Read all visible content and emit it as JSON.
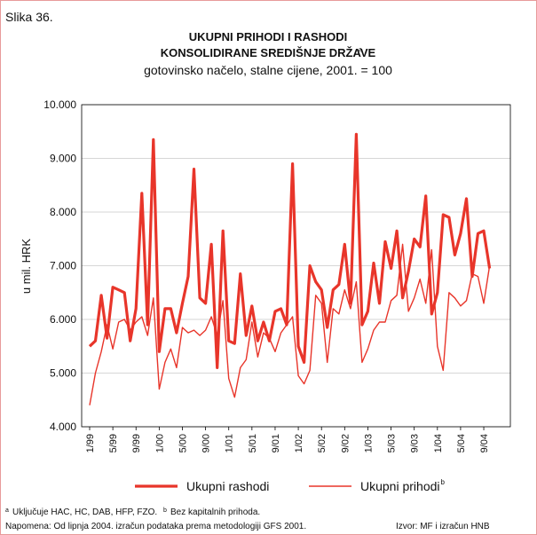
{
  "chart_data": {
    "type": "line",
    "figure_label": "Slika 36.",
    "title": "UKUPNI PRIHODI I RASHODI",
    "title_line2": "KONSOLIDIRANE SREDIŠNJE DRŽAVE",
    "title_superscript": "a",
    "subtitle": "gotovinsko načelo, stalne cijene, 2001. = 100",
    "y_label": "u mil. HRK",
    "categories": [
      "1/99",
      null,
      null,
      null,
      "5/99",
      null,
      null,
      null,
      "9/99",
      null,
      null,
      null,
      "1/00",
      null,
      null,
      null,
      "5/00",
      null,
      null,
      null,
      "9/00",
      null,
      null,
      null,
      "1/01",
      null,
      null,
      null,
      "5/01",
      null,
      null,
      null,
      "9/01",
      null,
      null,
      null,
      "1/02",
      null,
      null,
      null,
      "5/02",
      null,
      null,
      null,
      "9/02",
      null,
      null,
      null,
      "1/03",
      null,
      null,
      null,
      "5/03",
      null,
      null,
      null,
      "9/03",
      null,
      null,
      null,
      "1/04",
      null,
      null,
      null,
      "5/04",
      null,
      null,
      null,
      "9/04",
      null
    ],
    "series": [
      {
        "name": "Ukupni rashodi",
        "color": "#e8352a",
        "width": 3.2,
        "values": [
          5500,
          5600,
          6450,
          5650,
          6600,
          6550,
          6500,
          5600,
          6200,
          8350,
          5900,
          9350,
          5400,
          6200,
          6200,
          5750,
          6300,
          6800,
          8800,
          6400,
          6300,
          7400,
          5100,
          7650,
          5600,
          5550,
          6850,
          5700,
          6250,
          5600,
          5950,
          5600,
          6150,
          6200,
          5900,
          8900,
          5500,
          5200,
          7000,
          6700,
          6550,
          5850,
          6550,
          6650,
          7400,
          6300,
          9450,
          5900,
          6150,
          7050,
          6300,
          7450,
          6950,
          7650,
          6400,
          6900,
          7500,
          7350,
          8300,
          6100,
          6500,
          7950,
          7900,
          7200,
          7600,
          8250,
          6800,
          7600,
          7650,
          6950
        ]
      },
      {
        "name": "Ukupni prihodi",
        "superscript": "b",
        "color": "#e8352a",
        "width": 1.4,
        "values": [
          4400,
          5000,
          5400,
          5900,
          5450,
          5950,
          6000,
          5800,
          5950,
          6050,
          5700,
          6400,
          4700,
          5200,
          5450,
          5100,
          5850,
          5750,
          5800,
          5700,
          5800,
          6050,
          5700,
          6350,
          4900,
          4550,
          5100,
          5250,
          5950,
          5300,
          5750,
          5650,
          5400,
          5750,
          5900,
          6050,
          4950,
          4800,
          5050,
          6450,
          6300,
          5200,
          6200,
          6100,
          6550,
          6200,
          6700,
          5200,
          5450,
          5800,
          5950,
          5950,
          6350,
          6450,
          7400,
          6150,
          6400,
          6750,
          6300,
          7300,
          5500,
          5050,
          6500,
          6400,
          6250,
          6350,
          6850,
          6800,
          6300,
          7000
        ]
      }
    ],
    "ylim": [
      4000,
      10000
    ],
    "yticks": [
      {
        "value": 4000,
        "label": "4.000"
      },
      {
        "value": 5000,
        "label": "5.000"
      },
      {
        "value": 6000,
        "label": "6.000"
      },
      {
        "value": 7000,
        "label": "7.000"
      },
      {
        "value": 8000,
        "label": "8.000"
      },
      {
        "value": 9000,
        "label": "9.000"
      },
      {
        "value": 10000,
        "label": "10.000"
      }
    ],
    "grid": true,
    "footnote_a_mark": "a",
    "footnote_a": "Uključuje HAC, HC, DAB, HFP, FZO.",
    "footnote_b_mark": "b",
    "footnote_b": "Bez kapitalnih prihoda.",
    "note": "Napomena: Od lipnja 2004. izračun podataka prema metodologiji GFS 2001.",
    "source": "Izvor: MF i izračun HNB"
  }
}
